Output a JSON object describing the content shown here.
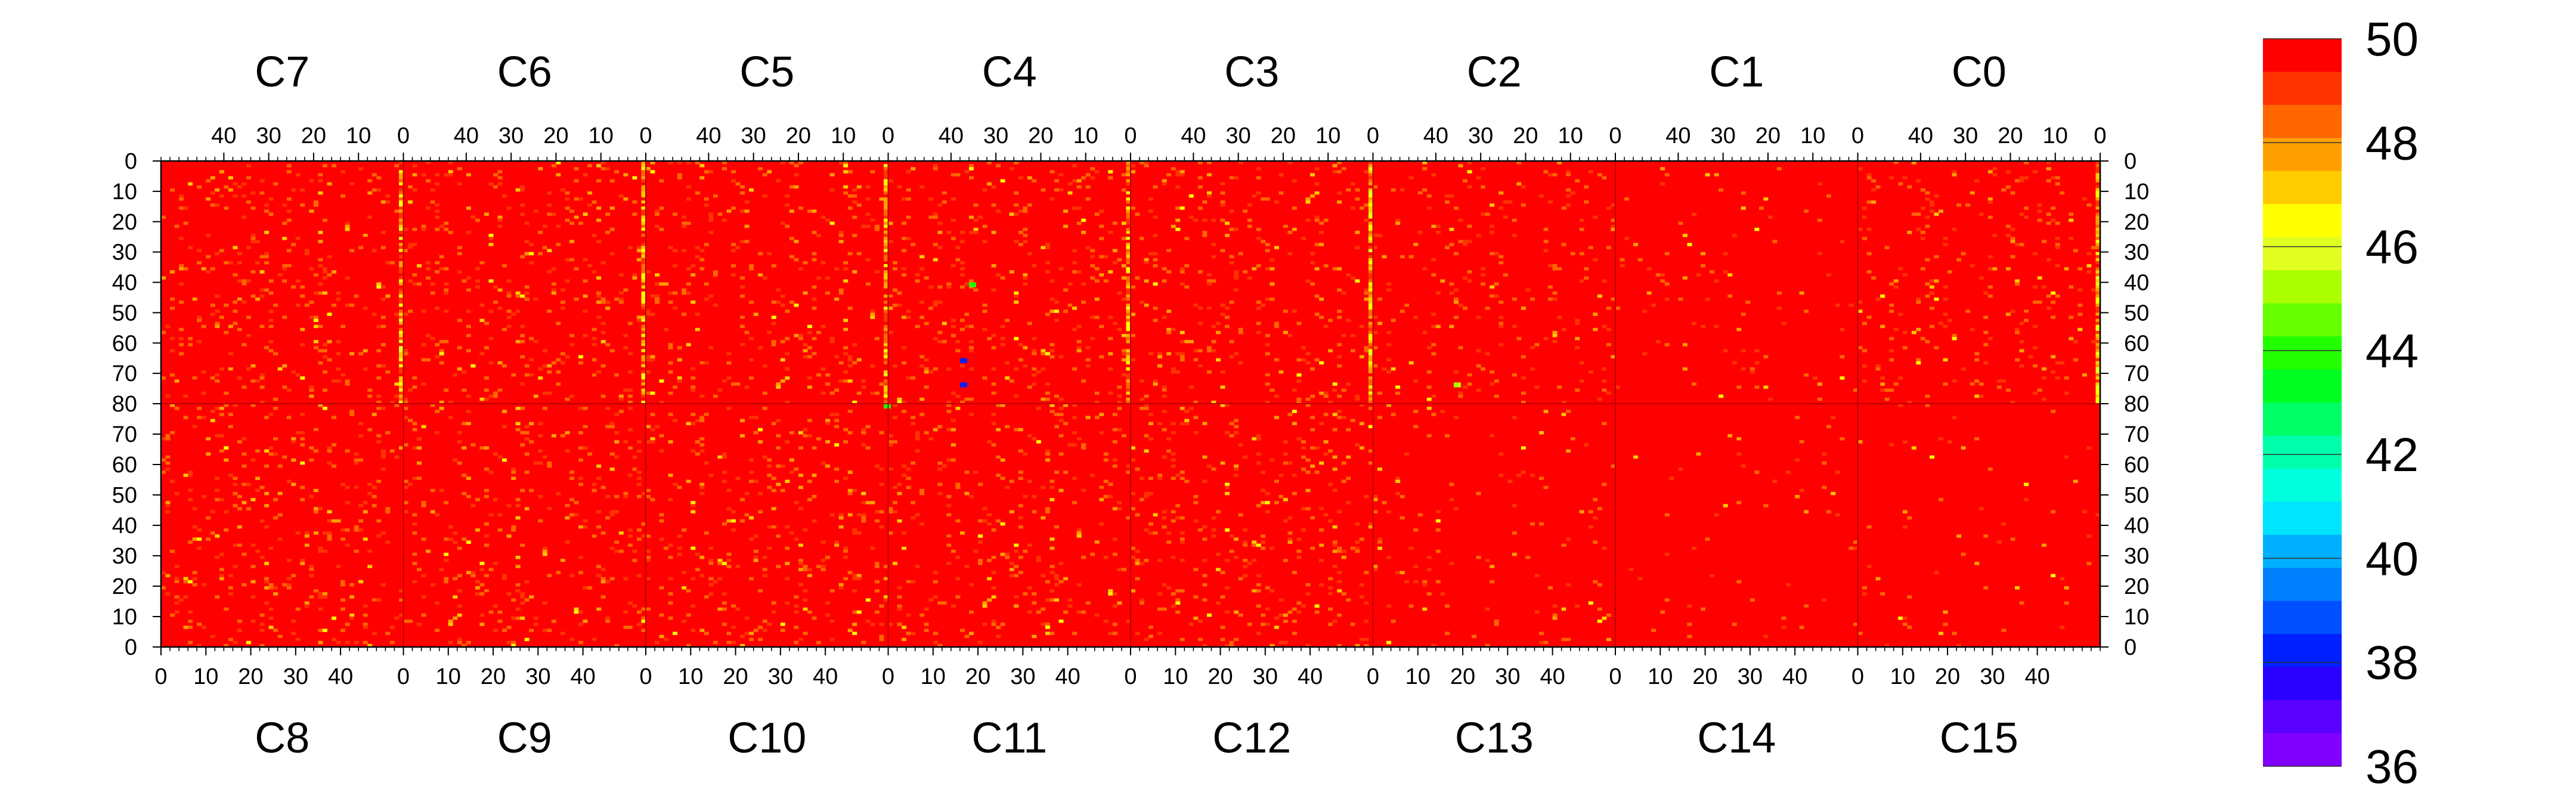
{
  "chart_data": {
    "type": "heatmap",
    "title": "",
    "xlabel": "",
    "ylabel": "",
    "top_panels": [
      "C7",
      "C6",
      "C5",
      "C4",
      "C3",
      "C2",
      "C1",
      "C0"
    ],
    "bottom_panels": [
      "C8",
      "C9",
      "C10",
      "C11",
      "C12",
      "C13",
      "C14",
      "C15"
    ],
    "top_x_ticks": [
      "40",
      "30",
      "20",
      "10",
      "0"
    ],
    "top_x_tick_values": [
      40,
      30,
      20,
      10,
      0
    ],
    "bottom_x_ticks": [
      "0",
      "10",
      "20",
      "30",
      "40"
    ],
    "bottom_x_tick_values": [
      0,
      10,
      20,
      30,
      40
    ],
    "channels_per_panel": 54,
    "y_ticks_top_half": [
      "0",
      "10",
      "20",
      "30",
      "40",
      "50",
      "60",
      "70",
      "80"
    ],
    "y_ticks_bottom_half": [
      "70",
      "60",
      "50",
      "40",
      "30",
      "20",
      "10",
      "0"
    ],
    "rows_per_half": 80,
    "z_range": [
      36,
      50
    ],
    "colorbar_ticks": [
      "50",
      "48",
      "46",
      "44",
      "42",
      "40",
      "38",
      "36"
    ],
    "colorbar_tick_values": [
      50,
      48,
      46,
      44,
      42,
      40,
      38,
      36
    ],
    "colorbar_colors": [
      "#ff0000",
      "#ff3300",
      "#ff6600",
      "#ffa000",
      "#ffcc00",
      "#ffff00",
      "#e0ff20",
      "#aaff00",
      "#66ff00",
      "#22ff00",
      "#00ff20",
      "#00ff66",
      "#00ffaa",
      "#00ffdd",
      "#00e5ff",
      "#00b0ff",
      "#0080ff",
      "#0050ff",
      "#0020ff",
      "#2a00ff",
      "#5a00ff",
      "#8000ff"
    ],
    "dominant_value": 50,
    "column_profile_note_values": {
      "hot_columns": [
        {
          "panel": "C7",
          "channel": 0,
          "mean": 48.2
        },
        {
          "panel": "C6",
          "channel": 0,
          "mean": 48.8
        },
        {
          "panel": "C5",
          "channel": 0,
          "mean": 47.6
        },
        {
          "panel": "C4",
          "channel": 0,
          "mean": 48.6
        },
        {
          "panel": "C3",
          "channel": 0,
          "mean": 48.4
        },
        {
          "panel": "C0",
          "channel": 0,
          "mean": 48.5
        }
      ]
    },
    "outliers": [
      {
        "panel": "C4",
        "channel": 35,
        "row": 40,
        "value": 44
      },
      {
        "panel": "C4",
        "channel": 37,
        "row": 65,
        "value": 38
      },
      {
        "panel": "C4",
        "channel": 37,
        "row": 73,
        "value": 38
      },
      {
        "panel": "C5",
        "channel": 0,
        "row": 80,
        "value": 44
      },
      {
        "panel": "C2",
        "channel": 35,
        "row": 73,
        "value": 45
      }
    ]
  }
}
